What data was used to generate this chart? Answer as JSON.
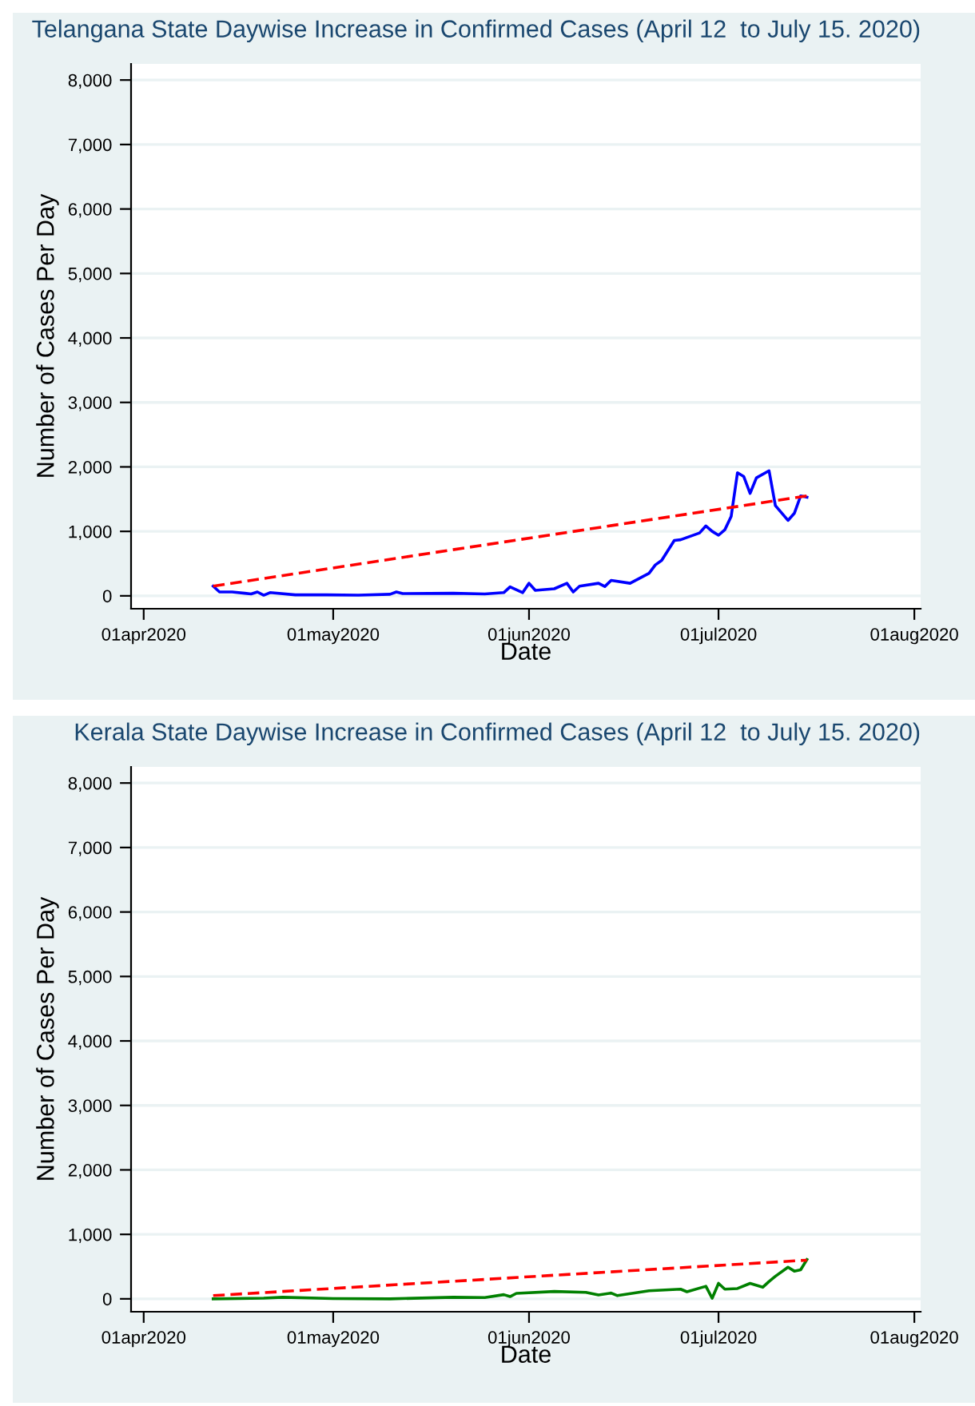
{
  "chart_data": [
    {
      "type": "line",
      "title": "Telangana State Daywise Increase in Confirmed Cases (April 12  to July 15. 2020)",
      "xlabel": "Date",
      "ylabel": "Number of Cases Per Day",
      "xlim": [
        "2020-03-30",
        "2020-08-02"
      ],
      "xticks": [
        {
          "value": "2020-04-01",
          "label": "01apr2020"
        },
        {
          "value": "2020-05-01",
          "label": "01may2020"
        },
        {
          "value": "2020-06-01",
          "label": "01jun2020"
        },
        {
          "value": "2020-07-01",
          "label": "01jul2020"
        },
        {
          "value": "2020-08-01",
          "label": "01aug2020"
        }
      ],
      "ylim": [
        -200,
        8250
      ],
      "yticks": [
        {
          "value": 0,
          "label": "0"
        },
        {
          "value": 1000,
          "label": "1,000"
        },
        {
          "value": 2000,
          "label": "2,000"
        },
        {
          "value": 3000,
          "label": "3,000"
        },
        {
          "value": 4000,
          "label": "4,000"
        },
        {
          "value": 5000,
          "label": "5,000"
        },
        {
          "value": 6000,
          "label": "6,000"
        },
        {
          "value": 7000,
          "label": "7,000"
        },
        {
          "value": 8000,
          "label": "8,000"
        }
      ],
      "grid": "y",
      "legend": false,
      "series": [
        {
          "color": "#0000ff",
          "line_style": "solid",
          "x": [
            "2020-04-12",
            "2020-04-13",
            "2020-04-15",
            "2020-04-17",
            "2020-04-18",
            "2020-04-19",
            "2020-04-20",
            "2020-04-21",
            "2020-04-25",
            "2020-04-30",
            "2020-05-05",
            "2020-05-10",
            "2020-05-11",
            "2020-05-12",
            "2020-05-20",
            "2020-05-25",
            "2020-05-28",
            "2020-05-29",
            "2020-05-31",
            "2020-06-01",
            "2020-06-02",
            "2020-06-05",
            "2020-06-07",
            "2020-06-08",
            "2020-06-09",
            "2020-06-12",
            "2020-06-13",
            "2020-06-14",
            "2020-06-17",
            "2020-06-20",
            "2020-06-21",
            "2020-06-22",
            "2020-06-24",
            "2020-06-25",
            "2020-06-28",
            "2020-06-29",
            "2020-06-30",
            "2020-07-01",
            "2020-07-02",
            "2020-07-03",
            "2020-07-04",
            "2020-07-05",
            "2020-07-06",
            "2020-07-07",
            "2020-07-09",
            "2020-07-10",
            "2020-07-12",
            "2020-07-13",
            "2020-07-14",
            "2020-07-15"
          ],
          "values": [
            150,
            60,
            60,
            40,
            30,
            60,
            10,
            50,
            15,
            15,
            10,
            25,
            60,
            35,
            40,
            30,
            50,
            140,
            50,
            195,
            85,
            110,
            195,
            60,
            150,
            195,
            145,
            240,
            195,
            350,
            480,
            550,
            860,
            870,
            975,
            1085,
            1000,
            940,
            1025,
            1230,
            1910,
            1850,
            1590,
            1830,
            1940,
            1400,
            1170,
            1280,
            1550,
            1530
          ]
        },
        {
          "type": "line",
          "color": "#ff0000",
          "line_style": "dashed",
          "x": [
            "2020-04-12",
            "2020-07-15"
          ],
          "values": [
            150,
            1550
          ]
        }
      ]
    },
    {
      "type": "line",
      "title": "Kerala State Daywise Increase in Confirmed Cases (April 12  to July 15. 2020)",
      "xlabel": "Date",
      "ylabel": "Number of Cases Per Day",
      "xlim": [
        "2020-03-30",
        "2020-08-02"
      ],
      "xticks": [
        {
          "value": "2020-04-01",
          "label": "01apr2020"
        },
        {
          "value": "2020-05-01",
          "label": "01may2020"
        },
        {
          "value": "2020-06-01",
          "label": "01jun2020"
        },
        {
          "value": "2020-07-01",
          "label": "01jul2020"
        },
        {
          "value": "2020-08-01",
          "label": "01aug2020"
        }
      ],
      "ylim": [
        -200,
        8250
      ],
      "yticks": [
        {
          "value": 0,
          "label": "0"
        },
        {
          "value": 1000,
          "label": "1,000"
        },
        {
          "value": 2000,
          "label": "2,000"
        },
        {
          "value": 3000,
          "label": "3,000"
        },
        {
          "value": 4000,
          "label": "4,000"
        },
        {
          "value": 5000,
          "label": "5,000"
        },
        {
          "value": 6000,
          "label": "6,000"
        },
        {
          "value": 7000,
          "label": "7,000"
        },
        {
          "value": 8000,
          "label": "8,000"
        }
      ],
      "grid": "y",
      "legend": false,
      "series": [
        {
          "color": "#008000",
          "line_style": "solid",
          "x": [
            "2020-04-12",
            "2020-04-20",
            "2020-04-23",
            "2020-05-01",
            "2020-05-10",
            "2020-05-20",
            "2020-05-25",
            "2020-05-28",
            "2020-05-29",
            "2020-05-30",
            "2020-06-05",
            "2020-06-10",
            "2020-06-12",
            "2020-06-14",
            "2020-06-15",
            "2020-06-20",
            "2020-06-25",
            "2020-06-26",
            "2020-06-29",
            "2020-06-30",
            "2020-07-01",
            "2020-07-02",
            "2020-07-04",
            "2020-07-06",
            "2020-07-08",
            "2020-07-09",
            "2020-07-10",
            "2020-07-12",
            "2020-07-13",
            "2020-07-14",
            "2020-07-15"
          ],
          "values": [
            0,
            10,
            25,
            5,
            0,
            25,
            20,
            65,
            35,
            85,
            115,
            100,
            60,
            90,
            50,
            125,
            150,
            110,
            195,
            10,
            240,
            150,
            160,
            240,
            180,
            270,
            350,
            490,
            430,
            450,
            610
          ]
        },
        {
          "type": "line",
          "color": "#ff0000",
          "line_style": "dashed",
          "x": [
            "2020-04-12",
            "2020-07-15"
          ],
          "values": [
            50,
            600
          ]
        }
      ]
    }
  ]
}
